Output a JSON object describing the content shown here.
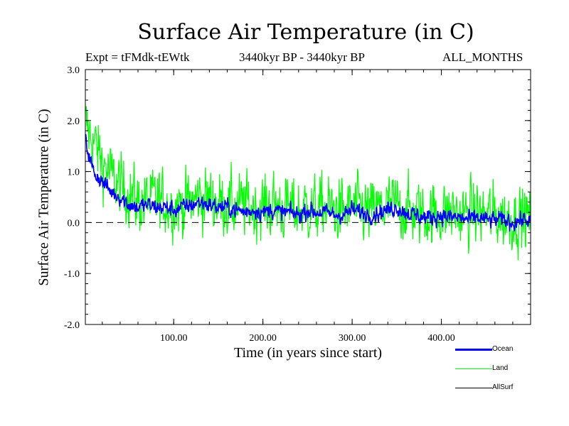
{
  "chart_data": {
    "type": "line",
    "title": "Surface Air Temperature (in C)",
    "subtitle_left": "Expt = tFMdk-tEWtk",
    "subtitle_center": "3440kyr BP - 3440kyr BP",
    "subtitle_right": "ALL_MONTHS",
    "xlabel": "Time (in years since start)",
    "ylabel": "Surface Air Temperature (in C)",
    "xlim": [
      1,
      500
    ],
    "ylim": [
      -2.0,
      3.0
    ],
    "x_ticks": [
      100,
      200,
      300,
      400
    ],
    "x_tick_labels": [
      "100.00",
      "200.00",
      "300.00",
      "400.00"
    ],
    "y_ticks": [
      3.0,
      2.0,
      1.0,
      0.0,
      -1.0,
      -2.0
    ],
    "y_tick_labels": [
      "3.0",
      "2.0",
      "1.0",
      "0.0",
      "-1.0",
      "-2.0"
    ],
    "zero_line": "dashed",
    "legend_position": "bottom-right",
    "series": [
      {
        "name": "Land",
        "color": "#00ff00",
        "x": [
          1,
          10,
          20,
          30,
          40,
          50,
          60,
          70,
          80,
          90,
          100,
          110,
          120,
          130,
          140,
          150,
          160,
          170,
          180,
          190,
          200,
          210,
          220,
          230,
          240,
          250,
          260,
          270,
          280,
          290,
          300,
          310,
          320,
          330,
          340,
          350,
          360,
          370,
          380,
          390,
          400,
          410,
          420,
          430,
          440,
          450,
          460,
          470,
          480,
          490,
          500
        ],
        "values": [
          1.9,
          1.6,
          1.2,
          0.9,
          0.7,
          0.6,
          0.4,
          0.4,
          0.45,
          0.4,
          0.35,
          0.35,
          0.4,
          0.5,
          0.45,
          0.4,
          0.35,
          0.3,
          0.35,
          0.3,
          0.3,
          0.35,
          0.3,
          0.25,
          0.25,
          0.3,
          0.25,
          0.3,
          0.25,
          0.2,
          0.3,
          0.25,
          0.2,
          0.25,
          0.3,
          0.35,
          0.25,
          0.2,
          0.2,
          0.15,
          0.2,
          0.2,
          0.15,
          0.15,
          0.2,
          0.15,
          0.15,
          0.1,
          0.1,
          0.1,
          0.1
        ],
        "spread": 0.75
      },
      {
        "name": "Ocean",
        "color": "#0000ff",
        "x": [
          1,
          10,
          20,
          30,
          40,
          50,
          60,
          70,
          80,
          90,
          100,
          110,
          120,
          130,
          140,
          150,
          160,
          170,
          180,
          190,
          200,
          210,
          220,
          230,
          240,
          250,
          260,
          270,
          280,
          290,
          300,
          310,
          320,
          330,
          340,
          350,
          360,
          370,
          380,
          390,
          400,
          410,
          420,
          430,
          440,
          450,
          460,
          470,
          480,
          490,
          500
        ],
        "values": [
          1.6,
          1.0,
          0.8,
          0.6,
          0.5,
          0.35,
          0.3,
          0.35,
          0.3,
          0.3,
          0.25,
          0.3,
          0.35,
          0.4,
          0.35,
          0.3,
          0.3,
          0.25,
          0.2,
          0.25,
          0.2,
          0.25,
          0.2,
          0.2,
          0.15,
          0.25,
          0.2,
          0.2,
          0.15,
          0.15,
          0.25,
          0.2,
          0.15,
          0.2,
          0.25,
          0.3,
          0.2,
          0.15,
          0.1,
          0.1,
          0.15,
          0.1,
          0.1,
          0.05,
          0.1,
          0.05,
          0.05,
          0.05,
          0.0,
          0.05,
          0.05
        ],
        "spread": 0.2
      },
      {
        "name": "AllSurf",
        "color": "#000000",
        "x": [],
        "values": []
      }
    ]
  },
  "legend": {
    "items": [
      {
        "label": "Ocean",
        "color": "#0000ff"
      },
      {
        "label": "Land",
        "color": "#00ff00"
      },
      {
        "label": "AllSurf",
        "color": "#000000"
      }
    ]
  }
}
